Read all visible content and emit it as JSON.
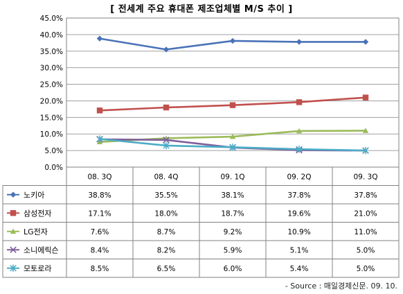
{
  "title": "[ 전세계 주요 휴대폰 제조업체별 M/S 추이 ]",
  "source": "- Source : 매일경제신문. 09. 10.",
  "chart_data": {
    "type": "line",
    "categories": [
      "08. 3Q",
      "08. 4Q",
      "09. 1Q",
      "09. 2Q",
      "09. 3Q"
    ],
    "ylim": [
      0,
      45
    ],
    "yticks": [
      "0.0%",
      "5.0%",
      "10.0%",
      "15.0%",
      "20.0%",
      "25.0%",
      "30.0%",
      "35.0%",
      "40.0%",
      "45.0%"
    ],
    "grid": true,
    "series": [
      {
        "name": "노키아",
        "values": [
          38.8,
          35.5,
          38.1,
          37.8,
          37.8
        ],
        "labels": [
          "38.8%",
          "35.5%",
          "38.1%",
          "37.8%",
          "37.8%"
        ],
        "color": "#4a72b8",
        "marker": "diamond"
      },
      {
        "name": "삼성전자",
        "values": [
          17.1,
          18.0,
          18.7,
          19.6,
          21.0
        ],
        "labels": [
          "17.1%",
          "18.0%",
          "18.7%",
          "19.6%",
          "21.0%"
        ],
        "color": "#c0504d",
        "marker": "square"
      },
      {
        "name": "LG전자",
        "values": [
          7.6,
          8.7,
          9.2,
          10.9,
          11.0
        ],
        "labels": [
          "7.6%",
          "8.7%",
          "9.2%",
          "10.9%",
          "11.0%"
        ],
        "color": "#9bbb59",
        "marker": "triangle"
      },
      {
        "name": "소니에릭슨",
        "values": [
          8.4,
          8.2,
          5.9,
          5.1,
          5.0
        ],
        "labels": [
          "8.4%",
          "8.2%",
          "5.9%",
          "5.1%",
          "5.0%"
        ],
        "color": "#7e5f9a",
        "marker": "x"
      },
      {
        "name": "모토로라",
        "values": [
          8.5,
          6.5,
          6.0,
          5.4,
          5.0
        ],
        "labels": [
          "8.5%",
          "6.5%",
          "6.0%",
          "5.4%",
          "5.0%"
        ],
        "color": "#4bacc6",
        "marker": "star"
      }
    ]
  }
}
